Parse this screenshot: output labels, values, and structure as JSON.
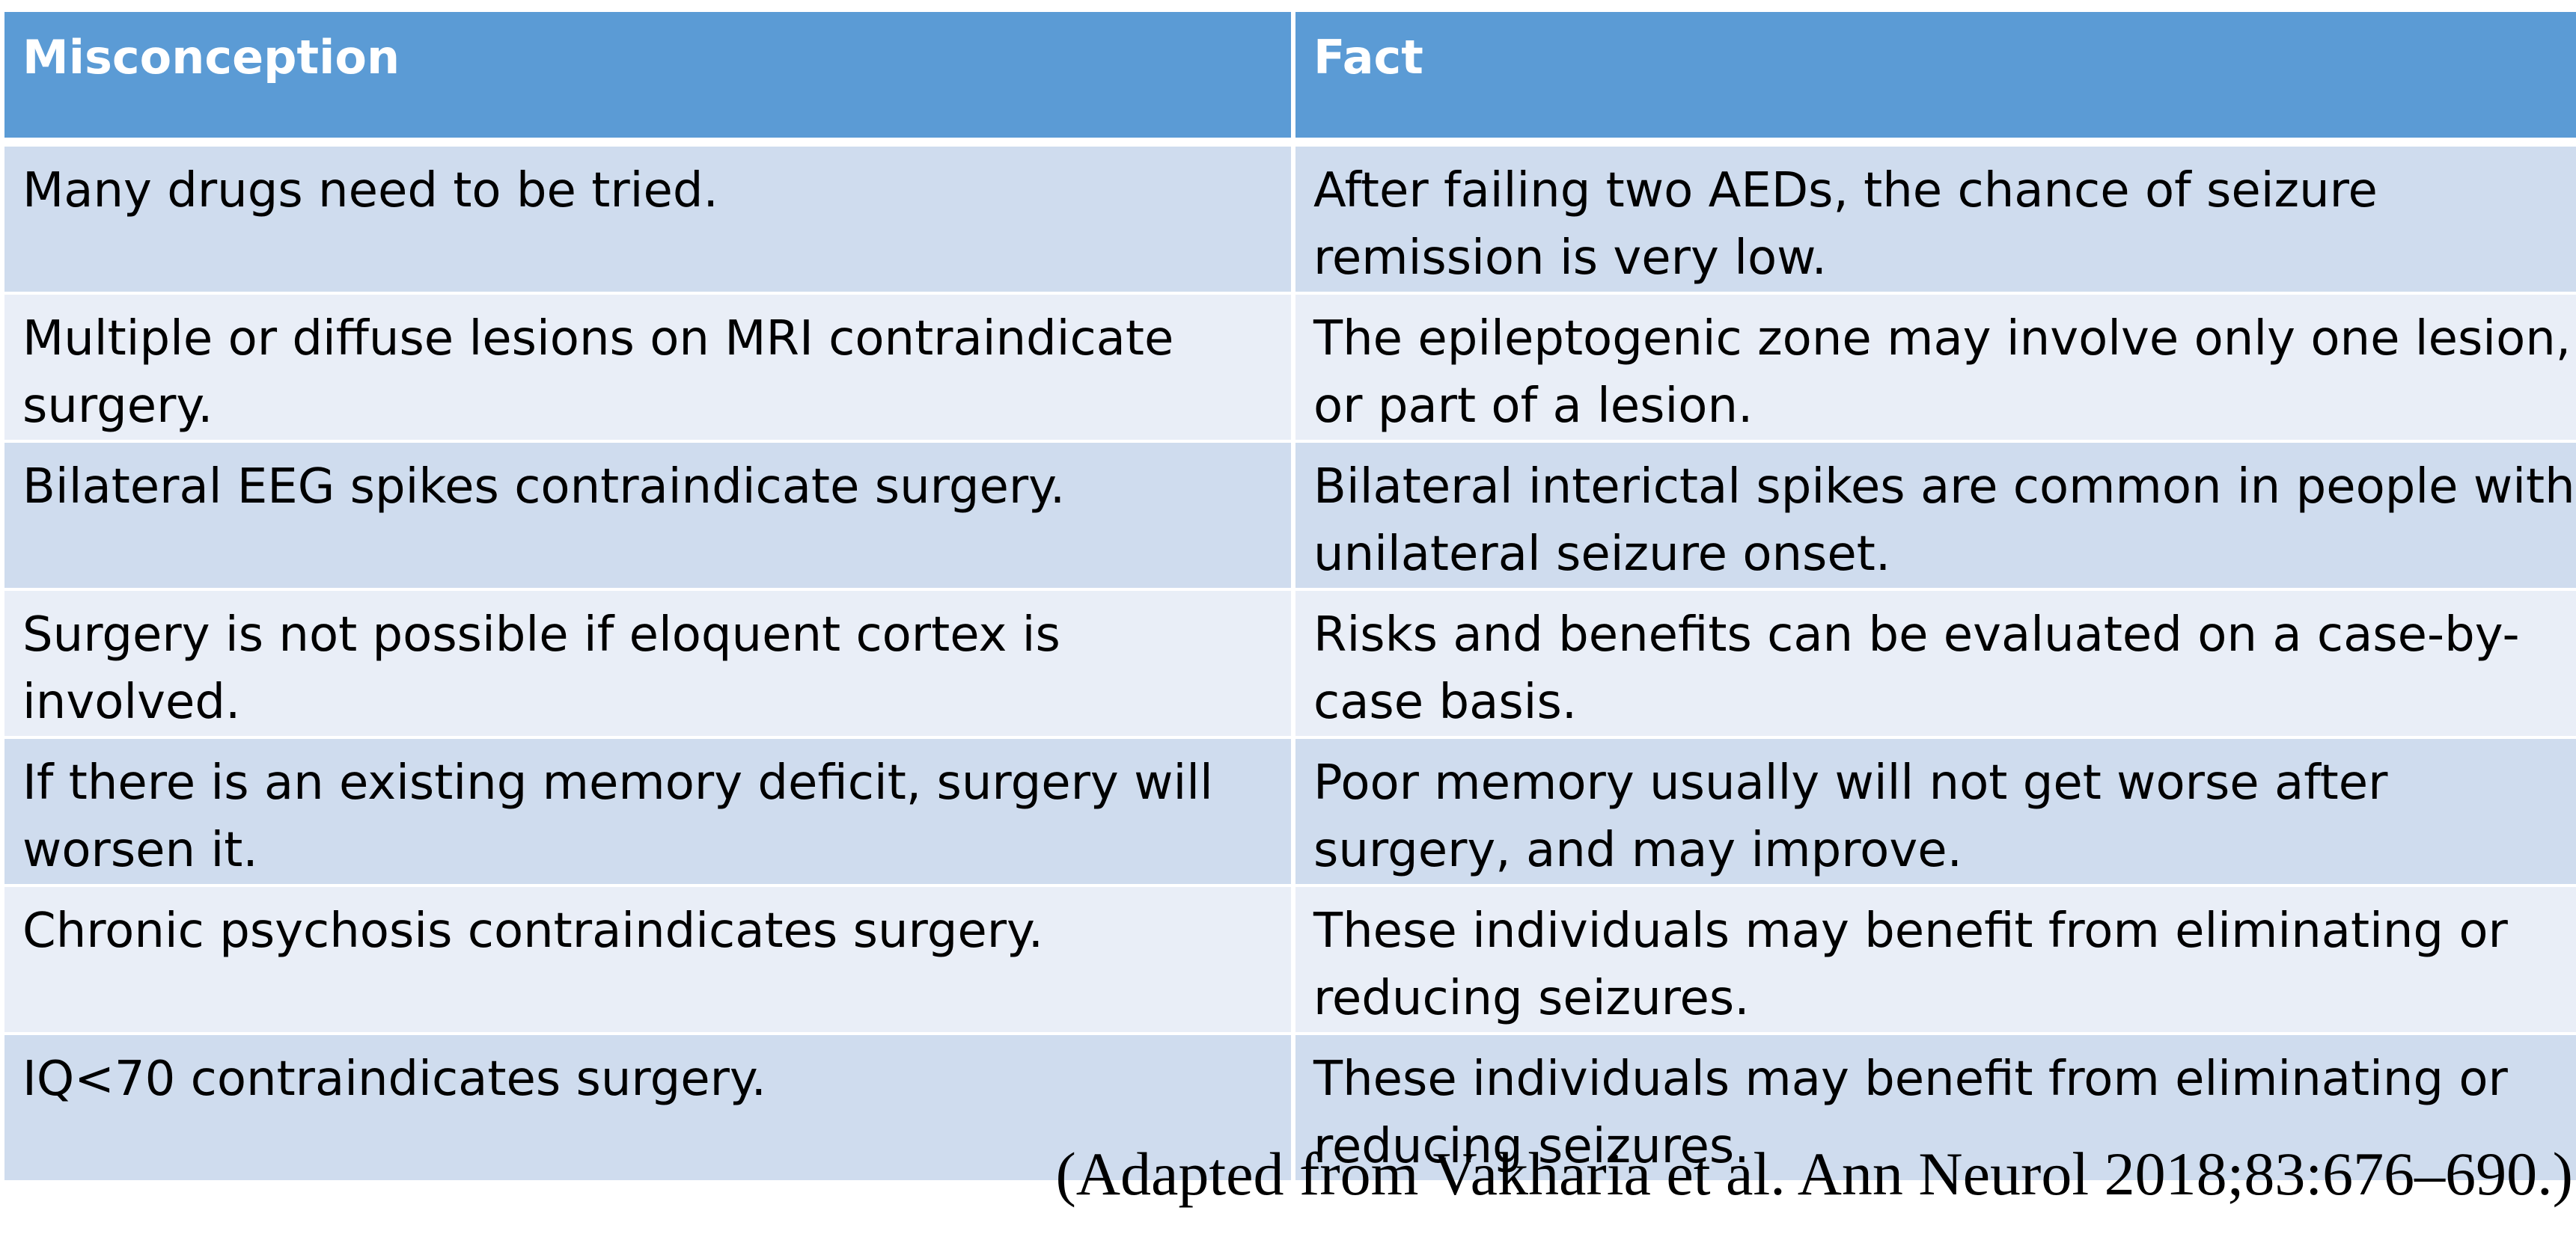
{
  "table": {
    "headers": [
      "Misconception",
      "Fact"
    ],
    "rows": [
      {
        "misconception": "Many drugs need to be tried.",
        "fact": "After failing two AEDs, the chance of seizure remission is very low."
      },
      {
        "misconception": "Multiple or diffuse lesions on MRI contraindicate surgery.",
        "fact": "The epileptogenic zone may involve only one lesion, or part of a lesion."
      },
      {
        "misconception": "Bilateral EEG spikes contraindicate surgery.",
        "fact": "Bilateral interictal spikes are common in people with unilateral seizure onset."
      },
      {
        "misconception": "Surgery is not possible if eloquent cortex is involved.",
        "fact": "Risks and benefits can be evaluated on a case-by-case basis."
      },
      {
        "misconception": "If there is an existing memory deficit, surgery will worsen it.",
        "fact": "Poor memory usually will not get worse after surgery, and may improve."
      },
      {
        "misconception": "Chronic psychosis contraindicates surgery.",
        "fact": "These individuals may benefit from eliminating or reducing seizures."
      },
      {
        "misconception": "IQ<70 contraindicates surgery.",
        "fact": "These individuals may benefit from eliminating or reducing seizures."
      }
    ]
  },
  "citation": "(Adapted from Vakharia et al. Ann Neurol 2018;83:676–690.)",
  "colors": {
    "header_bg": "#5b9bd5",
    "row_dark": "#cfdcee",
    "row_light": "#e9eef7"
  }
}
